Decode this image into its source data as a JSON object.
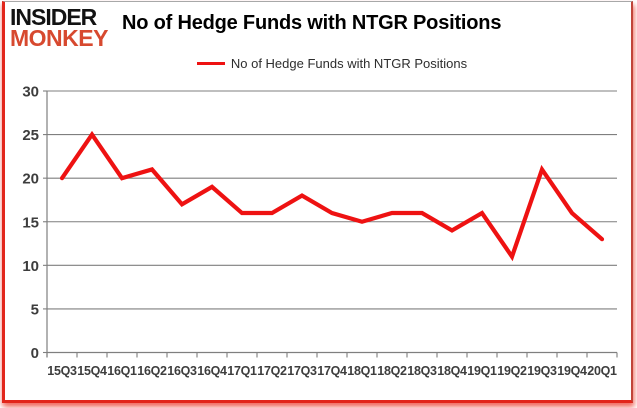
{
  "brand": {
    "line1": "INSIDER",
    "line2": "MONKEY",
    "color": "#d7492f"
  },
  "title": "No of Hedge Funds with NTGR Positions",
  "legend": {
    "label": "No of Hedge Funds with NTGR Positions"
  },
  "chart_data": {
    "type": "line",
    "title": "No of Hedge Funds with NTGR Positions",
    "categories": [
      "15Q3",
      "15Q4",
      "16Q1",
      "16Q2",
      "16Q3",
      "16Q4",
      "17Q1",
      "17Q2",
      "17Q3",
      "17Q4",
      "18Q1",
      "18Q2",
      "18Q3",
      "18Q4",
      "19Q1",
      "19Q2",
      "19Q3",
      "19Q4",
      "20Q1"
    ],
    "series": [
      {
        "name": "No of Hedge Funds with NTGR Positions",
        "color": "#ee1212",
        "values": [
          20,
          25,
          20,
          21,
          17,
          19,
          16,
          16,
          18,
          16,
          15,
          16,
          16,
          14,
          16,
          11,
          21,
          16,
          13
        ]
      }
    ],
    "ylim": [
      0,
      30
    ],
    "yticks": [
      0,
      5,
      10,
      15,
      20,
      25,
      30
    ],
    "grid": "horizontal",
    "legend_position": "top-center",
    "axis_color": "#7f7f7f",
    "label_color": "#3d3d3d"
  }
}
